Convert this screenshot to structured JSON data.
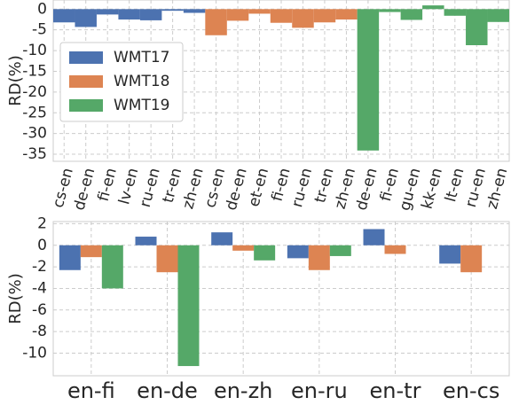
{
  "chart_data": [
    {
      "type": "bar",
      "y_label": "RD(%)",
      "categories": [
        "cs-en",
        "de-en",
        "fi-en",
        "lv-en",
        "ru-en",
        "tr-en",
        "zh-en",
        "cs-en",
        "de-en",
        "et-en",
        "fi-en",
        "ru-en",
        "tr-en",
        "zh-en",
        "de-en",
        "fi-en",
        "gu-en",
        "kk-en",
        "lt-en",
        "ru-en",
        "zh-en"
      ],
      "series": [
        {
          "name": "WMT17",
          "color": "#4c72b0",
          "values": [
            -3.2,
            -4.3,
            -1.3,
            -2.5,
            -2.7,
            -0.4,
            -0.9,
            null,
            null,
            null,
            null,
            null,
            null,
            null,
            null,
            null,
            null,
            null,
            null,
            null,
            null
          ]
        },
        {
          "name": "WMT18",
          "color": "#dd8452",
          "values": [
            null,
            null,
            null,
            null,
            null,
            null,
            null,
            -6.3,
            -2.8,
            -1.1,
            -3.3,
            -4.5,
            -3.2,
            -2.5,
            null,
            null,
            null,
            null,
            null,
            null,
            null
          ]
        },
        {
          "name": "WMT19",
          "color": "#55a868",
          "values": [
            null,
            null,
            null,
            null,
            null,
            null,
            null,
            null,
            null,
            null,
            null,
            null,
            null,
            null,
            -34.1,
            -0.7,
            -2.6,
            0.9,
            -1.6,
            -8.7,
            -3.1
          ]
        }
      ],
      "ylim": [
        -36.7,
        2.2
      ],
      "yticks": [
        0,
        -5,
        -10,
        -15,
        -20,
        -25,
        -30,
        -35
      ],
      "grid": true,
      "legend": "center left"
    },
    {
      "type": "bar",
      "y_label": "RD(%)",
      "categories": [
        "en-fi",
        "en-de",
        "en-zh",
        "en-ru",
        "en-tr",
        "en-cs"
      ],
      "series": [
        {
          "name": "WMT17",
          "color": "#4c72b0",
          "values": [
            -2.3,
            0.8,
            1.2,
            -1.2,
            1.5,
            -1.7
          ]
        },
        {
          "name": "WMT18",
          "color": "#dd8452",
          "values": [
            -1.1,
            -2.5,
            -0.5,
            -2.3,
            -0.8,
            -2.5
          ]
        },
        {
          "name": "WMT19",
          "color": "#55a868",
          "values": [
            -4.0,
            -11.2,
            -1.4,
            -1.0,
            null,
            null
          ]
        }
      ],
      "ylim": [
        -12.1,
        2.2
      ],
      "yticks": [
        2,
        0,
        -2,
        -4,
        -6,
        -8,
        -10
      ],
      "grid": true
    }
  ]
}
